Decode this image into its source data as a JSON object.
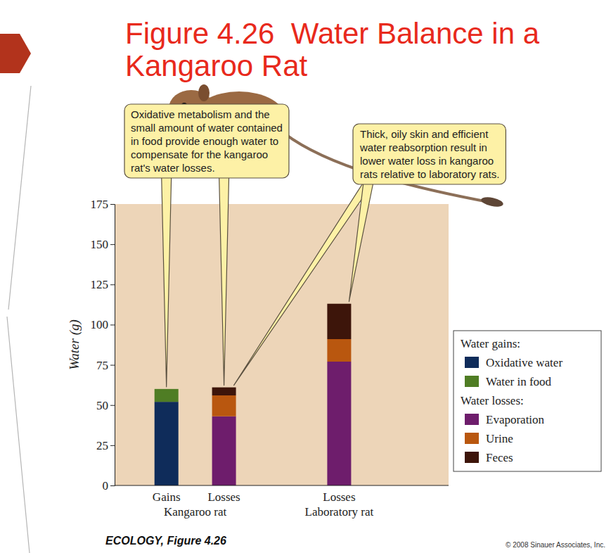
{
  "chart_data": {
    "type": "bar",
    "title": "Figure 4.26  Water Balance in a Kangaroo Rat",
    "stacked": true,
    "categories": [
      "Gains",
      "Losses",
      "Losses"
    ],
    "groups": [
      {
        "name": "Kangaroo rat",
        "members": [
          0,
          1
        ]
      },
      {
        "name": "Laboratory rat",
        "members": [
          2
        ]
      }
    ],
    "series": [
      {
        "name": "Oxidative water",
        "color": "#0f2c5a",
        "values": [
          52,
          null,
          null
        ]
      },
      {
        "name": "Water in food",
        "color": "#4f7d24",
        "values": [
          8,
          null,
          null
        ]
      },
      {
        "name": "Evaporation",
        "color": "#6e1d6c",
        "values": [
          null,
          43,
          77
        ]
      },
      {
        "name": "Urine",
        "color": "#b9570f",
        "values": [
          null,
          13,
          14
        ]
      },
      {
        "name": "Feces",
        "color": "#3d150a",
        "values": [
          null,
          5,
          22
        ]
      }
    ],
    "legend_groups": [
      {
        "title": "Water gains:",
        "series": [
          0,
          1
        ]
      },
      {
        "title": "Water losses:",
        "series": [
          2,
          3,
          4
        ]
      }
    ],
    "legend": "right",
    "y_label": "Water (g)",
    "ylim": [
      0,
      175
    ],
    "yticks": [
      0,
      25,
      50,
      75,
      100,
      125,
      150,
      175
    ],
    "grid": false,
    "annotations": [
      {
        "text": [
          "Oxidative metabolism and the",
          "small amount of water contained",
          "in food provide enough water to",
          "compensate for the kangaroo",
          "rat's water losses."
        ],
        "targets": [
          0,
          1
        ]
      },
      {
        "text": [
          "Thick, oily skin and efficient",
          "water reabsorption result in",
          "lower water loss in kangaroo",
          "rats relative to laboratory rats."
        ],
        "targets": [
          1,
          2
        ]
      }
    ],
    "caption": "ECOLOGY, Figure 4.26",
    "credit": "© 2008 Sinauer Associates, Inc."
  }
}
